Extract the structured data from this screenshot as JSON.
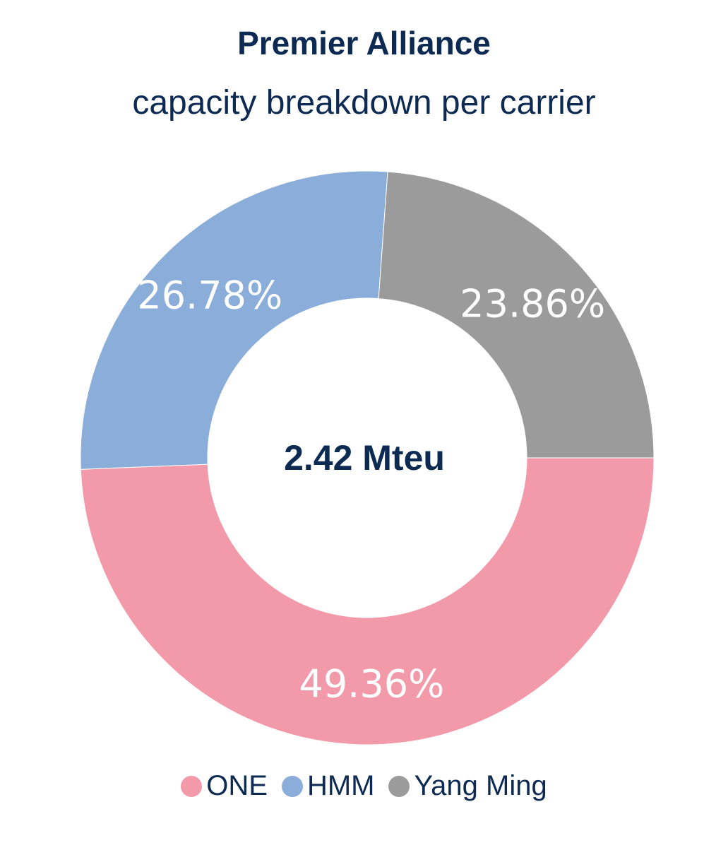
{
  "title": "Premier Alliance",
  "subtitle": "capacity breakdown per carrier",
  "chart_data": {
    "type": "pie",
    "title": "Premier Alliance",
    "subtitle": "capacity breakdown per carrier",
    "center_label": "2.42 Mteu",
    "legend_position": "bottom",
    "series": [
      {
        "name": "ONE",
        "value": 49.36,
        "label": "49.36%",
        "color": "#f29aaa"
      },
      {
        "name": "HMM",
        "value": 26.78,
        "label": "26.78%",
        "color": "#8aadd9"
      },
      {
        "name": "Yang Ming",
        "value": 23.86,
        "label": "23.86%",
        "color": "#9b9b9b"
      }
    ]
  }
}
